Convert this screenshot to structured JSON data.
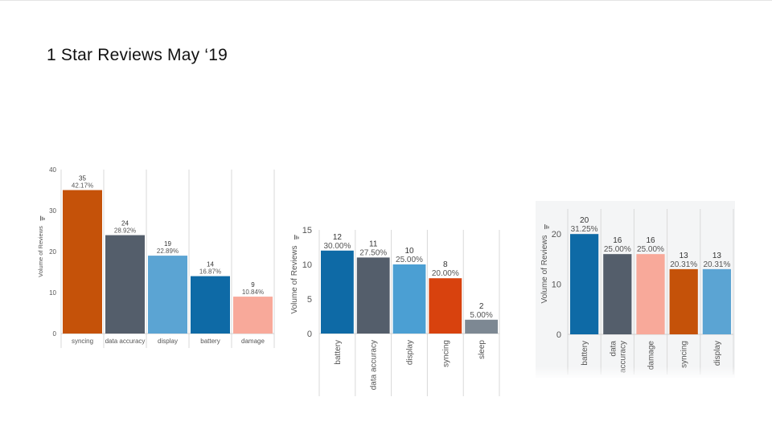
{
  "slide": {
    "title": "1 Star Reviews May ‘19"
  },
  "colors": {
    "orange": "#c55209",
    "slate": "#545e6b",
    "light_blue": "#5ba4d3",
    "dark_blue": "#0e6aa6",
    "salmon": "#f8a99a",
    "red_orange": "#d8420e",
    "gray": "#7d8893"
  },
  "chart_data": [
    {
      "type": "bar",
      "title": "",
      "xlabel": "",
      "ylabel": "Volume of Reviews",
      "ylim": [
        0,
        40
      ],
      "yticks": [
        "0",
        "10",
        "20",
        "30",
        "40"
      ],
      "categories": [
        "syncing",
        "data accuracy",
        "display",
        "battery",
        "damage"
      ],
      "values": [
        35,
        24,
        19,
        14,
        9
      ],
      "value_labels": [
        "35",
        "24",
        "19",
        "14",
        "9"
      ],
      "percent_labels": [
        "42.17%",
        "28.92%",
        "22.89%",
        "16.87%",
        "10.84%"
      ],
      "bar_colors": [
        "#c55209",
        "#545e6b",
        "#5ba4d3",
        "#0e6aa6",
        "#f8a99a"
      ]
    },
    {
      "type": "bar",
      "title": "",
      "xlabel": "",
      "ylabel": "Volume of Reviews",
      "ylim": [
        0,
        15
      ],
      "yticks": [
        "0",
        "5",
        "10",
        "15"
      ],
      "categories": [
        "battery",
        "data accuracy",
        "display",
        "syncing",
        "sleep"
      ],
      "values": [
        12,
        11,
        10,
        8,
        2
      ],
      "value_labels": [
        "12",
        "11",
        "10",
        "8",
        "2"
      ],
      "percent_labels": [
        "30.00%",
        "27.50%",
        "25.00%",
        "20.00%",
        "5.00%"
      ],
      "bar_colors": [
        "#0e6aa6",
        "#545e6b",
        "#4b9fd3",
        "#d8420e",
        "#7d8893"
      ]
    },
    {
      "type": "bar",
      "title": "",
      "xlabel": "",
      "ylabel": "Volume of Reviews",
      "ylim": [
        0,
        25
      ],
      "yticks": [
        "0",
        "10",
        "20"
      ],
      "categories": [
        "battery",
        "data accuracy",
        "damage",
        "syncing",
        "display"
      ],
      "values": [
        20,
        16,
        16,
        13,
        13
      ],
      "value_labels": [
        "20",
        "16",
        "16",
        "13",
        "13"
      ],
      "percent_labels": [
        "31.25%",
        "25.00%",
        "25.00%",
        "20.31%",
        "20.31%"
      ],
      "bar_colors": [
        "#0e6aa6",
        "#545e6b",
        "#f8a99a",
        "#c55209",
        "#5ba4d3"
      ]
    }
  ]
}
